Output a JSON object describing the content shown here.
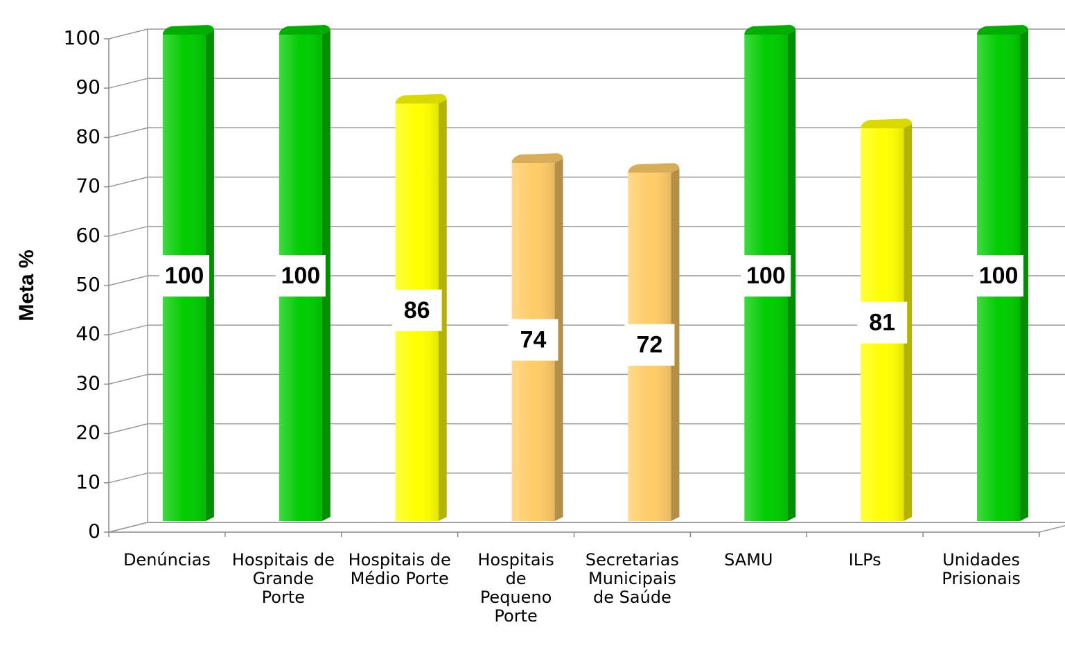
{
  "chart_data": {
    "type": "bar",
    "ylabel": "Meta %",
    "categories": [
      "Denúncias",
      "Hospitais de Grande Porte",
      "Hospitais de Médio Porte",
      "Hospitais de Pequeno Porte",
      "Secretarias Municipais de Saúde",
      "SAMU",
      "ILPs",
      "Unidades Prisionais"
    ],
    "values": [
      100,
      100,
      86,
      74,
      72,
      100,
      81,
      100
    ],
    "colors": [
      "#00cc00",
      "#00cc00",
      "#ffff00",
      "#ffcc66",
      "#ffcc66",
      "#00cc00",
      "#ffff00",
      "#00cc00"
    ],
    "ylim": [
      0,
      100
    ],
    "yticks": [
      0,
      10,
      20,
      30,
      40,
      50,
      60,
      70,
      80,
      90,
      100
    ],
    "grid": true
  }
}
